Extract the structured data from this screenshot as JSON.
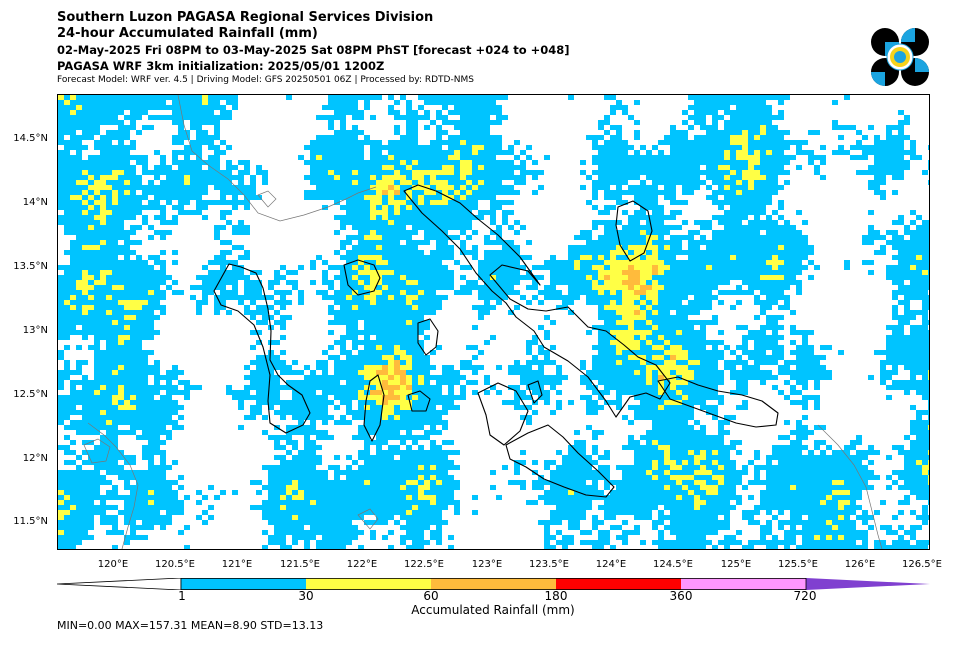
{
  "header": {
    "title1": "Southern Luzon PAGASA Regional Services Division",
    "title2": "24-hour Accumulated Rainfall (mm)",
    "title3": "02-May-2025 Fri 08PM to 03-May-2025 Sat 08PM PhST [forecast +024 to +048]",
    "title4": "PAGASA WRF 3km initialization: 2025/05/01 1200Z",
    "title5": "Forecast Model: WRF ver. 4.5 | Driving Model: GFS 20250501 06Z | Processed by: RDTD-NMS"
  },
  "logo": {
    "icon": "pagasa-logo-icon",
    "colors": [
      "#000000",
      "#1ba4e0",
      "#f5d31c"
    ]
  },
  "map": {
    "lon_range": [
      119.5,
      126.5
    ],
    "lat_range": [
      11.3,
      14.85
    ],
    "lon_ticks": [
      "120°E",
      "120.5°E",
      "121°E",
      "121.5°E",
      "122°E",
      "122.5°E",
      "123°E",
      "123.5°E",
      "124°E",
      "124.5°E",
      "125°E",
      "125.5°E",
      "126°E",
      "126.5°E"
    ],
    "lat_ticks": [
      "14.5°N",
      "14°N",
      "13.5°N",
      "13°N",
      "12.5°N",
      "12°N",
      "11.5°N"
    ]
  },
  "colorbar": {
    "levels": [
      "1",
      "30",
      "60",
      "180",
      "360",
      "720"
    ],
    "colors": [
      "#00c4ff",
      "#ffff45",
      "#ffbb3c",
      "#ff0000",
      "#ff96ff",
      "#8040d0"
    ],
    "title": "Accumulated Rainfall (mm)"
  },
  "stats": {
    "text": "MIN=0.00   MAX=157.31   MEAN=8.90   STD=13.13"
  }
}
